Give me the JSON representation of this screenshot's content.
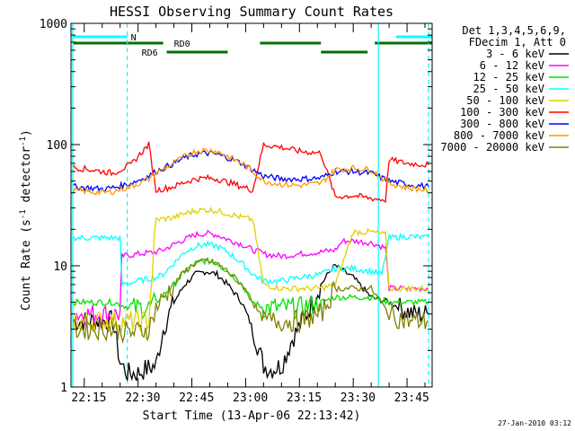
{
  "chart_data": {
    "type": "line",
    "title": "HESSI Observing Summary Count Rates",
    "xlabel": "Start Time (13-Apr-06 22:13:42)",
    "ylabel_main": "Count Rate (s",
    "ylabel_sup1": "-1",
    "ylabel_mid": " detector",
    "ylabel_sup2": "-1",
    "ylabel_end": ")",
    "yscale": "log",
    "ylim": [
      1,
      1000
    ],
    "xlim_minutes": [
      -3.7,
      97
    ],
    "x_tick_labels": [
      "22:15",
      "22:30",
      "22:45",
      "23:00",
      "23:15",
      "23:30",
      "23:45"
    ],
    "y_tick_labels": [
      {
        "label": "1",
        "value": 1
      },
      {
        "label": "10",
        "value": 10
      },
      {
        "label": "100",
        "value": 100
      },
      {
        "label": "1000",
        "value": 1000
      }
    ],
    "legend_header": [
      "Det 1,3,4,5,6,9,",
      "FDecim 1, Att 0"
    ],
    "series": [
      {
        "name": "3 - 6 keV",
        "color": "#000000",
        "x": [
          -3,
          8,
          10,
          12,
          15,
          17,
          20,
          22,
          25,
          28,
          31,
          34,
          37,
          40,
          44,
          47,
          50,
          52,
          55,
          58,
          62,
          66,
          69,
          70,
          75,
          80,
          85,
          88,
          92,
          96
        ],
        "y": [
          3.5,
          3.5,
          1.6,
          1.3,
          1.3,
          1.4,
          1.5,
          3,
          5,
          7,
          8.5,
          9,
          8.5,
          7,
          5,
          3,
          1.5,
          1.4,
          1.5,
          2.5,
          4,
          7,
          9.5,
          10,
          8,
          5.5,
          5,
          4.5,
          4,
          4
        ]
      },
      {
        "name": "6 - 12 keV",
        "color": "#ff00ff",
        "x": [
          -3,
          5,
          10,
          10.5,
          15,
          20,
          22,
          25,
          28,
          31,
          34,
          37,
          40,
          44,
          47,
          49,
          50,
          55,
          60,
          66,
          70,
          72,
          75,
          80,
          84,
          85,
          90,
          96
        ],
        "y": [
          4,
          4,
          4,
          12,
          12.5,
          13,
          13.5,
          15,
          16.5,
          18,
          18.5,
          18,
          16.5,
          15,
          13.5,
          13,
          12.5,
          12,
          12.5,
          13,
          13.5,
          16,
          16,
          15.5,
          14,
          6.5,
          6.5,
          6.5
        ]
      },
      {
        "name": "12 - 25 keV",
        "color": "#00e000",
        "x": [
          -3,
          8,
          13,
          18,
          20,
          25,
          28,
          31,
          34,
          37,
          40,
          44,
          47,
          50,
          55,
          60,
          66,
          70,
          75,
          80,
          85,
          90,
          96
        ],
        "y": [
          5,
          5,
          4.5,
          4.5,
          5,
          7,
          9,
          10.5,
          11,
          10.5,
          9,
          7,
          5,
          4.5,
          4.5,
          4.5,
          5,
          5.5,
          5.5,
          5.5,
          5,
          5,
          5
        ]
      },
      {
        "name": "25 - 50 keV",
        "color": "#00ffff",
        "x": [
          -3,
          8,
          10,
          10.5,
          15,
          20,
          22,
          25,
          28,
          31,
          34,
          37,
          40,
          44,
          47,
          50,
          55,
          60,
          66,
          70,
          72,
          75,
          80,
          83,
          85,
          90,
          96
        ],
        "y": [
          17,
          17,
          17,
          7,
          7.5,
          8,
          8.5,
          10.5,
          13,
          14.5,
          15,
          14.5,
          13,
          10.5,
          8.5,
          7.5,
          7.5,
          8,
          8.5,
          9.5,
          9.5,
          9.5,
          9,
          8.5,
          17,
          17.5,
          17
        ]
      },
      {
        "name": "50 - 100 keV",
        "color": "#e0d000",
        "x": [
          -3,
          5,
          13,
          18,
          20,
          25,
          28,
          31,
          34,
          37,
          40,
          44,
          47,
          50,
          55,
          60,
          66,
          70,
          75,
          80,
          84,
          85,
          90,
          96
        ],
        "y": [
          3.5,
          3.5,
          3.5,
          3.5,
          24,
          25,
          27,
          28.5,
          29,
          28.5,
          27,
          25,
          24,
          7,
          6.5,
          6.5,
          6.5,
          7,
          19,
          19,
          18,
          6.5,
          6.5,
          6.5
        ]
      },
      {
        "name": "100 - 300 keV",
        "color": "#ff0000",
        "x": [
          -3,
          5,
          8,
          10,
          13,
          15,
          18,
          20,
          25,
          28,
          31,
          34,
          37,
          40,
          44,
          47,
          50,
          55,
          60,
          66,
          70,
          75,
          80,
          84,
          85,
          90,
          96
        ],
        "y": [
          65,
          60,
          58,
          62,
          68,
          80,
          100,
          42,
          45,
          49,
          52,
          53,
          52,
          49,
          45,
          42,
          100,
          95,
          88,
          85,
          37,
          38,
          36,
          35,
          75,
          70,
          68
        ]
      },
      {
        "name": "300 - 800 keV",
        "color": "#0000ff",
        "x": [
          -3,
          5,
          8,
          13,
          18,
          20,
          25,
          28,
          31,
          34,
          37,
          40,
          44,
          47,
          50,
          55,
          60,
          66,
          70,
          75,
          80,
          85,
          90,
          96
        ],
        "y": [
          45,
          43,
          44,
          48,
          55,
          60,
          70,
          78,
          83,
          85,
          83,
          78,
          70,
          62,
          55,
          52,
          52,
          53,
          60,
          60,
          58,
          50,
          47,
          45
        ]
      },
      {
        "name": "800 - 7000 keV",
        "color": "#ff9900",
        "x": [
          -3,
          5,
          8,
          13,
          18,
          20,
          25,
          28,
          31,
          34,
          37,
          40,
          44,
          47,
          50,
          55,
          60,
          66,
          70,
          75,
          80,
          85,
          90,
          96
        ],
        "y": [
          42,
          40,
          41,
          45,
          52,
          58,
          70,
          80,
          88,
          90,
          88,
          80,
          70,
          60,
          50,
          47,
          46,
          48,
          62,
          64,
          62,
          48,
          44,
          42
        ]
      },
      {
        "name": "7000 - 20000 keV",
        "color": "#808000",
        "x": [
          -3,
          8,
          13,
          18,
          20,
          25,
          28,
          31,
          34,
          37,
          40,
          44,
          47,
          50,
          55,
          60,
          66,
          70,
          75,
          80,
          85,
          90,
          96
        ],
        "y": [
          3,
          3,
          2.8,
          3,
          4.5,
          7,
          9,
          10.5,
          11,
          10.5,
          9,
          7,
          5,
          3.5,
          3.5,
          3.5,
          4,
          6.5,
          6.5,
          6.5,
          4,
          3.5,
          3.5
        ]
      }
    ],
    "flags": [
      {
        "label": "N",
        "color": "#00ffff",
        "segments": [
          [
            -3,
            12
          ],
          [
            87,
            97
          ]
        ],
        "level": 1
      },
      {
        "label": "RD0",
        "color": "#007000",
        "segments": [
          [
            -3,
            22
          ],
          [
            49,
            66
          ],
          [
            81,
            97
          ]
        ],
        "level": 2
      },
      {
        "label": "RD6",
        "color": "#007000",
        "segments": [
          [
            23,
            40
          ],
          [
            66,
            79
          ]
        ],
        "level": 3
      }
    ],
    "flag_label_positions_minutes": {
      "N": 13,
      "RD0": 25,
      "RD6": 16
    },
    "vlines": [
      {
        "x": -3.2,
        "color": "#00ffff",
        "style": "solid"
      },
      {
        "x": 12,
        "color": "#00ffff",
        "style": "dashed"
      },
      {
        "x": 82,
        "color": "#00ffff",
        "style": "solid"
      },
      {
        "x": 96,
        "color": "#00ffff",
        "style": "dashed"
      }
    ],
    "grid": false,
    "legend_placement": "right",
    "footer_timestamp": "27-Jan-2010 03:12"
  }
}
